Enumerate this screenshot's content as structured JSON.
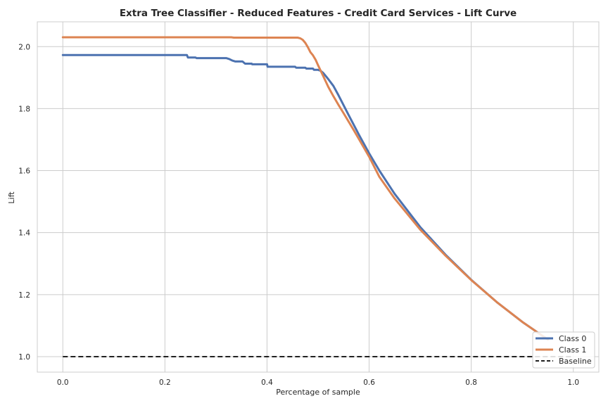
{
  "chart_data": {
    "type": "line",
    "title": "Extra Tree Classifier - Reduced Features - Credit Card Services - Lift Curve",
    "xlabel": "Percentage of sample",
    "ylabel": "Lift",
    "xlim": [
      -0.05,
      1.05
    ],
    "ylim": [
      0.95,
      2.08
    ],
    "xticks": [
      0.0,
      0.2,
      0.4,
      0.6,
      0.8,
      1.0
    ],
    "xtick_labels": [
      "0.0",
      "0.2",
      "0.4",
      "0.6",
      "0.8",
      "1.0"
    ],
    "yticks": [
      1.0,
      1.2,
      1.4,
      1.6,
      1.8,
      2.0
    ],
    "ytick_labels": [
      "1.0",
      "1.2",
      "1.4",
      "1.6",
      "1.8",
      "2.0"
    ],
    "grid": true,
    "legend_position": "bottom-right",
    "series": [
      {
        "name": "Class 0",
        "color": "#4c72b0",
        "style": "solid",
        "x": [
          0.0,
          0.243,
          0.245,
          0.26,
          0.262,
          0.32,
          0.326,
          0.332,
          0.338,
          0.352,
          0.357,
          0.37,
          0.371,
          0.4,
          0.401,
          0.455,
          0.457,
          0.475,
          0.477,
          0.49,
          0.492,
          0.5,
          0.505,
          0.51,
          0.515,
          0.52,
          0.53,
          0.54,
          0.56,
          0.58,
          0.6,
          0.62,
          0.65,
          0.7,
          0.75,
          0.8,
          0.85,
          0.9,
          0.95
        ],
        "y": [
          1.973,
          1.973,
          1.965,
          1.965,
          1.963,
          1.963,
          1.96,
          1.955,
          1.952,
          1.952,
          1.945,
          1.945,
          1.943,
          1.943,
          1.935,
          1.935,
          1.932,
          1.932,
          1.929,
          1.929,
          1.925,
          1.925,
          1.922,
          1.915,
          1.905,
          1.895,
          1.873,
          1.843,
          1.779,
          1.716,
          1.656,
          1.6,
          1.525,
          1.418,
          1.328,
          1.248,
          1.176,
          1.112,
          1.055
        ]
      },
      {
        "name": "Class 1",
        "color": "#dd8452",
        "style": "solid",
        "x": [
          0.0,
          0.33,
          0.335,
          0.46,
          0.465,
          0.47,
          0.475,
          0.48,
          0.485,
          0.49,
          0.495,
          0.5,
          0.51,
          0.52,
          0.53,
          0.54,
          0.55,
          0.57,
          0.6,
          0.62,
          0.65,
          0.7,
          0.75,
          0.8,
          0.85,
          0.9,
          0.95
        ],
        "y": [
          2.03,
          2.03,
          2.029,
          2.029,
          2.027,
          2.022,
          2.012,
          1.998,
          1.982,
          1.972,
          1.958,
          1.94,
          1.905,
          1.87,
          1.84,
          1.812,
          1.785,
          1.73,
          1.645,
          1.58,
          1.51,
          1.41,
          1.325,
          1.247,
          1.176,
          1.112,
          1.055
        ]
      },
      {
        "name": "Baseline",
        "color": "#000000",
        "style": "dashed",
        "x": [
          0.0,
          1.0
        ],
        "y": [
          1.0,
          1.0
        ]
      }
    ]
  }
}
